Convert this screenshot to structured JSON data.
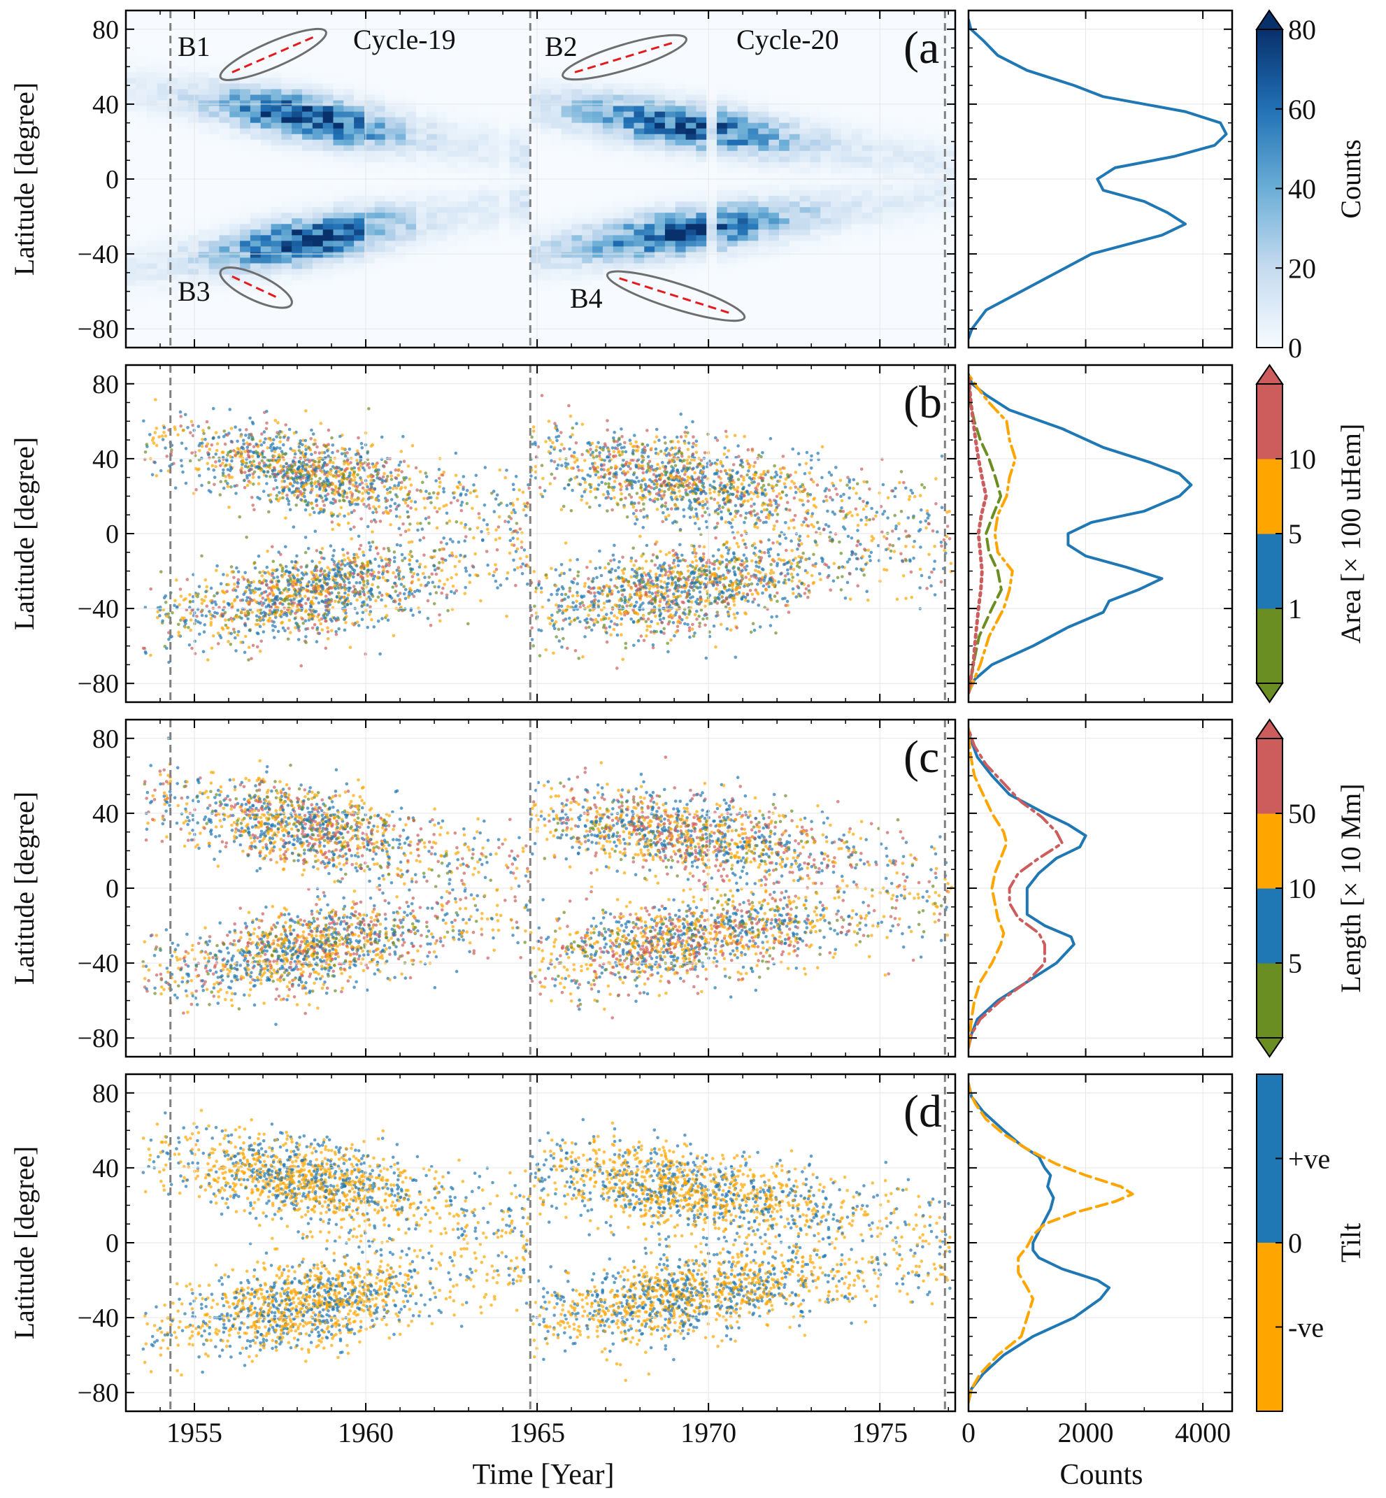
{
  "figure": {
    "xlabel": "Time [Year]",
    "hist_xlabel": "Counts",
    "ylabel": "Latitude [degree]",
    "cycle_labels": [
      "Cycle-19",
      "Cycle-20"
    ],
    "branch_labels": [
      "B1",
      "B2",
      "B3",
      "B4"
    ],
    "cycle_boundaries": [
      1954.3,
      1964.8,
      1976.9
    ],
    "colors": {
      "blue": "#1f77b4",
      "orange": "#ffa500",
      "red": "#cd5c5c",
      "green": "#6b8e23",
      "gray": "#808080",
      "fit_line": "#e41a1c"
    }
  },
  "chart_data": [
    {
      "panel": "(a",
      "type": "heatmap",
      "xlim": [
        1953,
        1977.2
      ],
      "ylim": [
        -90,
        90
      ],
      "xticks": [
        1955,
        1960,
        1965,
        1970,
        1975
      ],
      "yticks": [
        80,
        40,
        0,
        -40,
        -80
      ],
      "ytick_labels": [
        "80",
        "40",
        "0",
        "−40",
        "−80"
      ],
      "colorbar": {
        "label": "Counts",
        "range": [
          0,
          80
        ],
        "ticks": [
          0,
          20,
          40,
          60,
          80
        ],
        "extend": "max"
      },
      "branches": [
        {
          "name": "B1",
          "x": [
            1956.1,
            1958.5
          ],
          "y": [
            57,
            76
          ]
        },
        {
          "name": "B2",
          "x": [
            1966.1,
            1969.0
          ],
          "y": [
            57,
            73
          ]
        },
        {
          "name": "B3",
          "x": [
            1956.1,
            1957.5
          ],
          "y": [
            -52,
            -64
          ]
        },
        {
          "name": "B4",
          "x": [
            1967.4,
            1970.7
          ],
          "y": [
            -53,
            -72
          ]
        }
      ],
      "histograms": [
        {
          "name": "all",
          "style": "solid",
          "color": "#1f77b4",
          "latitude": [
            -85,
            -80,
            -70,
            -60,
            -50,
            -40,
            -30,
            -24,
            -18,
            -12,
            -6,
            0,
            6,
            12,
            18,
            24,
            30,
            36,
            44,
            50,
            58,
            66,
            74,
            80,
            85
          ],
          "counts": [
            0,
            60,
            300,
            900,
            1500,
            2100,
            3300,
            3700,
            3400,
            3000,
            2300,
            2200,
            2500,
            3500,
            4200,
            4400,
            4300,
            3700,
            2300,
            1800,
            1000,
            500,
            250,
            40,
            0
          ]
        }
      ]
    },
    {
      "panel": "(b",
      "type": "scatter",
      "xlim": [
        1953,
        1977.2
      ],
      "ylim": [
        -90,
        90
      ],
      "colorbar": {
        "label": "Area [× 100 uHem]",
        "ticks": [
          "1",
          "5",
          "10"
        ],
        "bins": [
          "<1",
          "1–5",
          "5–10",
          ">10"
        ],
        "colors": [
          "#6b8e23",
          "#1f77b4",
          "#ffa500",
          "#cd5c5c"
        ],
        "extend": "both"
      },
      "histograms": [
        {
          "name": "1–5",
          "style": "solid",
          "color": "#1f77b4",
          "latitude": [
            -85,
            -78,
            -70,
            -60,
            -50,
            -42,
            -36,
            -30,
            -24,
            -18,
            -12,
            -6,
            0,
            6,
            12,
            20,
            26,
            32,
            38,
            46,
            56,
            66,
            74,
            80,
            85
          ],
          "counts": [
            0,
            100,
            400,
            1100,
            1700,
            2300,
            2400,
            2900,
            3300,
            2700,
            2000,
            1700,
            1700,
            2100,
            3000,
            3600,
            3800,
            3600,
            3100,
            2300,
            1600,
            700,
            300,
            60,
            0
          ]
        },
        {
          "name": "5–10",
          "style": "dashdot",
          "color": "#ffa500",
          "latitude": [
            -85,
            -70,
            -55,
            -40,
            -30,
            -20,
            -10,
            0,
            10,
            20,
            30,
            40,
            50,
            60,
            70,
            78,
            85
          ],
          "counts": [
            0,
            200,
            350,
            600,
            700,
            750,
            500,
            450,
            500,
            650,
            700,
            800,
            700,
            650,
            350,
            150,
            0
          ]
        },
        {
          "name": "<1",
          "style": "dashed",
          "color": "#6b8e23",
          "latitude": [
            -85,
            -70,
            -55,
            -40,
            -30,
            -20,
            -10,
            0,
            10,
            20,
            30,
            40,
            50,
            60,
            70,
            85
          ],
          "counts": [
            0,
            80,
            180,
            400,
            560,
            500,
            350,
            300,
            420,
            550,
            460,
            350,
            200,
            100,
            30,
            0
          ]
        },
        {
          "name": ">10",
          "style": "dotted",
          "color": "#cd5c5c",
          "latitude": [
            -85,
            -70,
            -55,
            -40,
            -30,
            -20,
            -10,
            0,
            10,
            20,
            30,
            40,
            50,
            60,
            70,
            85
          ],
          "counts": [
            0,
            80,
            120,
            170,
            210,
            230,
            200,
            170,
            220,
            300,
            230,
            170,
            120,
            80,
            40,
            0
          ]
        }
      ]
    },
    {
      "panel": "(c",
      "type": "scatter",
      "xlim": [
        1953,
        1977.2
      ],
      "ylim": [
        -90,
        90
      ],
      "colorbar": {
        "label": "Length [× 10 Mm]",
        "ticks": [
          "5",
          "10",
          "50"
        ],
        "bins": [
          "<5",
          "5–10",
          "10–50",
          ">50"
        ],
        "colors": [
          "#6b8e23",
          "#1f77b4",
          "#ffa500",
          "#cd5c5c"
        ],
        "extend": "both"
      },
      "histograms": [
        {
          "name": "5–10",
          "style": "solid",
          "color": "#1f77b4",
          "latitude": [
            -85,
            -78,
            -70,
            -60,
            -50,
            -40,
            -30,
            -26,
            -20,
            -14,
            -8,
            0,
            8,
            16,
            22,
            28,
            34,
            40,
            50,
            60,
            70,
            80,
            85
          ],
          "counts": [
            0,
            50,
            150,
            500,
            1000,
            1500,
            1800,
            1750,
            1300,
            1000,
            1000,
            1000,
            1200,
            1500,
            1900,
            2000,
            1700,
            1300,
            700,
            400,
            150,
            30,
            0
          ]
        },
        {
          "name": ">50",
          "style": "dashdot",
          "color": "#cd5c5c",
          "latitude": [
            -85,
            -78,
            -70,
            -60,
            -50,
            -40,
            -30,
            -24,
            -16,
            -8,
            0,
            8,
            16,
            24,
            30,
            38,
            46,
            56,
            66,
            76,
            85
          ],
          "counts": [
            0,
            50,
            200,
            550,
            1000,
            1300,
            1300,
            1200,
            850,
            700,
            700,
            850,
            1200,
            1600,
            1500,
            1250,
            900,
            600,
            300,
            100,
            0
          ]
        },
        {
          "name": "10–50",
          "style": "dashed",
          "color": "#ffa500",
          "latitude": [
            -85,
            -70,
            -60,
            -50,
            -40,
            -30,
            -24,
            -16,
            -8,
            0,
            8,
            16,
            24,
            30,
            40,
            50,
            60,
            70,
            80,
            85
          ],
          "counts": [
            0,
            50,
            100,
            200,
            400,
            550,
            600,
            500,
            450,
            400,
            450,
            550,
            650,
            600,
            400,
            250,
            100,
            40,
            10,
            0
          ]
        }
      ]
    },
    {
      "panel": "(d",
      "type": "scatter",
      "xlim": [
        1953,
        1977.2
      ],
      "ylim": [
        -90,
        90
      ],
      "xlabel": "Time [Year]",
      "xticks": [
        1955,
        1960,
        1965,
        1970,
        1975
      ],
      "hist_xticks": [
        0,
        2000,
        4000
      ],
      "colorbar": {
        "label": "Tilt",
        "ticks": [
          "+ve",
          "0",
          "-ve"
        ],
        "bins": [
          "-ve",
          "+ve"
        ],
        "colors": [
          "#ffa500",
          "#1f77b4"
        ]
      },
      "histograms": [
        {
          "name": "+ve",
          "style": "solid",
          "color": "#1f77b4",
          "latitude": [
            -85,
            -78,
            -70,
            -60,
            -50,
            -40,
            -30,
            -24,
            -20,
            -14,
            -8,
            -4,
            0,
            6,
            12,
            18,
            24,
            30,
            36,
            40,
            46,
            52,
            60,
            70,
            78,
            85
          ],
          "counts": [
            0,
            50,
            250,
            600,
            1100,
            1800,
            2250,
            2400,
            2200,
            1600,
            1200,
            1100,
            1100,
            1200,
            1300,
            1400,
            1450,
            1350,
            1400,
            1300,
            1200,
            900,
            600,
            250,
            50,
            0
          ]
        },
        {
          "name": "-ve",
          "style": "dashed",
          "color": "#ffa500",
          "latitude": [
            -85,
            -78,
            -70,
            -60,
            -50,
            -40,
            -30,
            -24,
            -16,
            -8,
            -2,
            4,
            10,
            16,
            22,
            26,
            30,
            36,
            42,
            50,
            58,
            66,
            74,
            80,
            85
          ],
          "counts": [
            0,
            50,
            200,
            500,
            900,
            1000,
            1100,
            1000,
            850,
            850,
            1000,
            1100,
            1300,
            1800,
            2500,
            2800,
            2600,
            2000,
            1500,
            1000,
            600,
            300,
            120,
            30,
            0
          ]
        }
      ]
    }
  ]
}
